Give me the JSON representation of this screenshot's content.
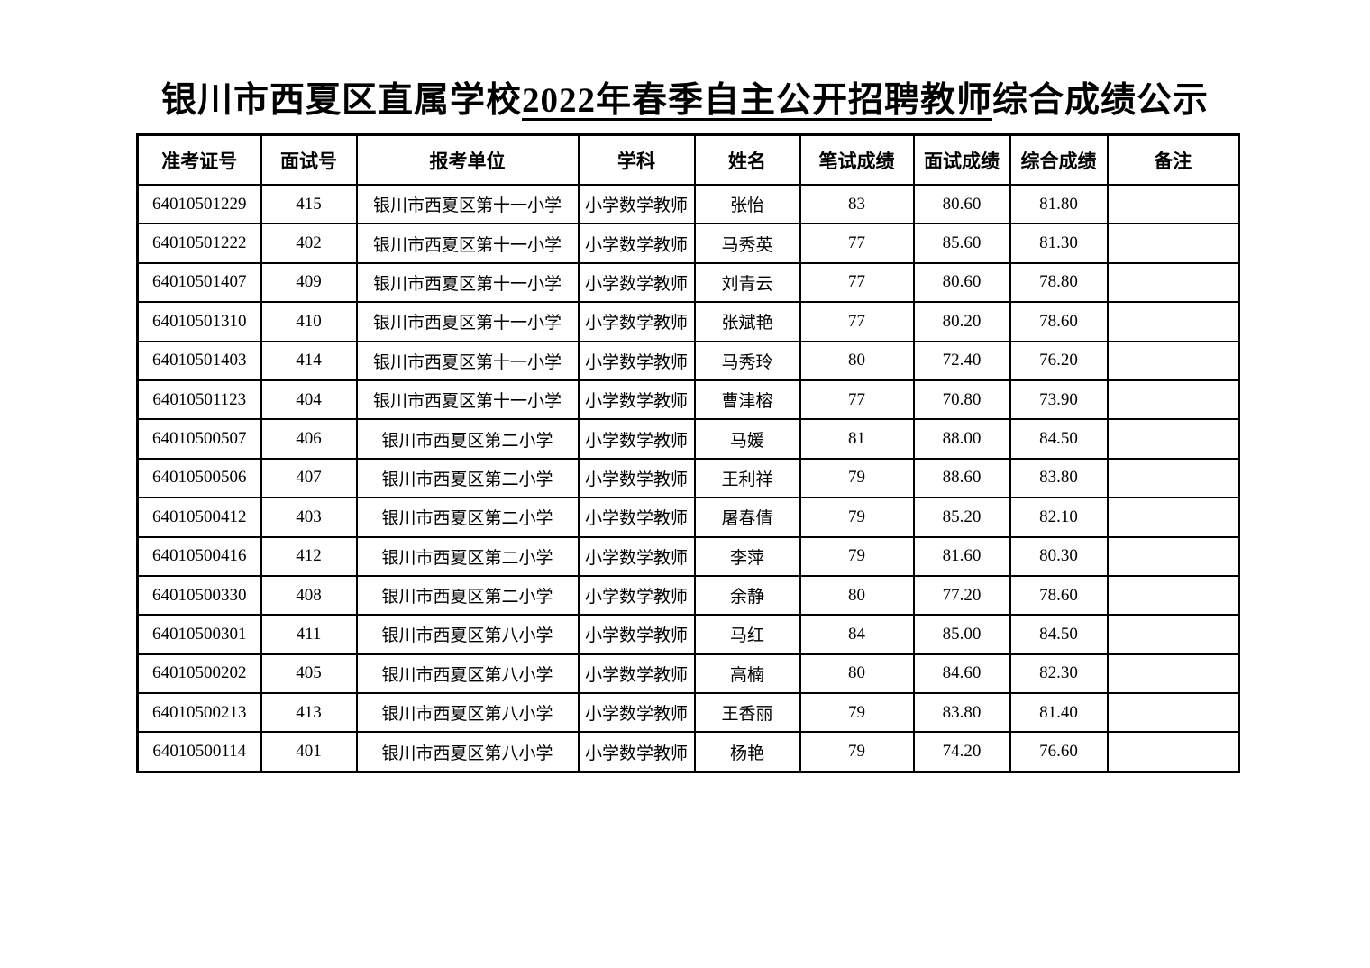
{
  "title": {
    "prefix": "银川市西夏区直属学校",
    "underlined": "2022年春季自主公开招聘教师",
    "suffix": "综合成绩公示"
  },
  "table": {
    "columns": [
      {
        "key": "exam_id",
        "label": "准考证号"
      },
      {
        "key": "interview_no",
        "label": "面试号"
      },
      {
        "key": "unit",
        "label": "报考单位"
      },
      {
        "key": "subject",
        "label": "学科"
      },
      {
        "key": "name",
        "label": "姓名"
      },
      {
        "key": "written_score",
        "label": "笔试成绩"
      },
      {
        "key": "interview_score",
        "label": "面试成绩"
      },
      {
        "key": "overall_score",
        "label": "综合成绩"
      },
      {
        "key": "remark",
        "label": "备注"
      }
    ],
    "rows": [
      {
        "exam_id": "64010501229",
        "interview_no": "415",
        "unit": "银川市西夏区第十一小学",
        "subject": "小学数学教师",
        "name": "张怡",
        "written_score": "83",
        "interview_score": "80.60",
        "overall_score": "81.80",
        "remark": ""
      },
      {
        "exam_id": "64010501222",
        "interview_no": "402",
        "unit": "银川市西夏区第十一小学",
        "subject": "小学数学教师",
        "name": "马秀英",
        "written_score": "77",
        "interview_score": "85.60",
        "overall_score": "81.30",
        "remark": ""
      },
      {
        "exam_id": "64010501407",
        "interview_no": "409",
        "unit": "银川市西夏区第十一小学",
        "subject": "小学数学教师",
        "name": "刘青云",
        "written_score": "77",
        "interview_score": "80.60",
        "overall_score": "78.80",
        "remark": ""
      },
      {
        "exam_id": "64010501310",
        "interview_no": "410",
        "unit": "银川市西夏区第十一小学",
        "subject": "小学数学教师",
        "name": "张斌艳",
        "written_score": "77",
        "interview_score": "80.20",
        "overall_score": "78.60",
        "remark": ""
      },
      {
        "exam_id": "64010501403",
        "interview_no": "414",
        "unit": "银川市西夏区第十一小学",
        "subject": "小学数学教师",
        "name": "马秀玲",
        "written_score": "80",
        "interview_score": "72.40",
        "overall_score": "76.20",
        "remark": ""
      },
      {
        "exam_id": "64010501123",
        "interview_no": "404",
        "unit": "银川市西夏区第十一小学",
        "subject": "小学数学教师",
        "name": "曹津榕",
        "written_score": "77",
        "interview_score": "70.80",
        "overall_score": "73.90",
        "remark": ""
      },
      {
        "exam_id": "64010500507",
        "interview_no": "406",
        "unit": "银川市西夏区第二小学",
        "subject": "小学数学教师",
        "name": "马媛",
        "written_score": "81",
        "interview_score": "88.00",
        "overall_score": "84.50",
        "remark": ""
      },
      {
        "exam_id": "64010500506",
        "interview_no": "407",
        "unit": "银川市西夏区第二小学",
        "subject": "小学数学教师",
        "name": "王利祥",
        "written_score": "79",
        "interview_score": "88.60",
        "overall_score": "83.80",
        "remark": ""
      },
      {
        "exam_id": "64010500412",
        "interview_no": "403",
        "unit": "银川市西夏区第二小学",
        "subject": "小学数学教师",
        "name": "屠春倩",
        "written_score": "79",
        "interview_score": "85.20",
        "overall_score": "82.10",
        "remark": ""
      },
      {
        "exam_id": "64010500416",
        "interview_no": "412",
        "unit": "银川市西夏区第二小学",
        "subject": "小学数学教师",
        "name": "李萍",
        "written_score": "79",
        "interview_score": "81.60",
        "overall_score": "80.30",
        "remark": ""
      },
      {
        "exam_id": "64010500330",
        "interview_no": "408",
        "unit": "银川市西夏区第二小学",
        "subject": "小学数学教师",
        "name": "余静",
        "written_score": "80",
        "interview_score": "77.20",
        "overall_score": "78.60",
        "remark": ""
      },
      {
        "exam_id": "64010500301",
        "interview_no": "411",
        "unit": "银川市西夏区第八小学",
        "subject": "小学数学教师",
        "name": "马红",
        "written_score": "84",
        "interview_score": "85.00",
        "overall_score": "84.50",
        "remark": ""
      },
      {
        "exam_id": "64010500202",
        "interview_no": "405",
        "unit": "银川市西夏区第八小学",
        "subject": "小学数学教师",
        "name": "高楠",
        "written_score": "80",
        "interview_score": "84.60",
        "overall_score": "82.30",
        "remark": ""
      },
      {
        "exam_id": "64010500213",
        "interview_no": "413",
        "unit": "银川市西夏区第八小学",
        "subject": "小学数学教师",
        "name": "王香丽",
        "written_score": "79",
        "interview_score": "83.80",
        "overall_score": "81.40",
        "remark": ""
      },
      {
        "exam_id": "64010500114",
        "interview_no": "401",
        "unit": "银川市西夏区第八小学",
        "subject": "小学数学教师",
        "name": "杨艳",
        "written_score": "79",
        "interview_score": "74.20",
        "overall_score": "76.60",
        "remark": ""
      }
    ]
  }
}
